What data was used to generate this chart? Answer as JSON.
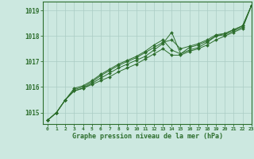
{
  "xlabel": "Graphe pression niveau de la mer (hPa)",
  "bg_color": "#cce8e0",
  "grid_color": "#aaccc4",
  "line_color": "#2d6e2d",
  "xlim": [
    -0.5,
    23
  ],
  "ylim": [
    1014.55,
    1019.35
  ],
  "yticks": [
    1015,
    1016,
    1017,
    1018,
    1019
  ],
  "xticks": [
    0,
    1,
    2,
    3,
    4,
    5,
    6,
    7,
    8,
    9,
    10,
    11,
    12,
    13,
    14,
    15,
    16,
    17,
    18,
    19,
    20,
    21,
    22,
    23
  ],
  "series": [
    [
      1014.7,
      1015.0,
      1015.5,
      1015.85,
      1015.95,
      1016.1,
      1016.25,
      1016.4,
      1016.6,
      1016.75,
      1016.9,
      1017.1,
      1017.3,
      1017.5,
      1017.25,
      1017.25,
      1017.4,
      1017.5,
      1017.65,
      1017.85,
      1018.0,
      1018.15,
      1018.3,
      1019.2
    ],
    [
      1014.7,
      1015.0,
      1015.5,
      1015.85,
      1015.95,
      1016.15,
      1016.35,
      1016.55,
      1016.75,
      1016.9,
      1017.05,
      1017.2,
      1017.45,
      1017.7,
      1018.15,
      1017.3,
      1017.55,
      1017.65,
      1017.8,
      1018.0,
      1018.05,
      1018.2,
      1018.35,
      1019.2
    ],
    [
      1014.7,
      1015.0,
      1015.5,
      1015.9,
      1016.0,
      1016.2,
      1016.45,
      1016.65,
      1016.85,
      1017.0,
      1017.15,
      1017.35,
      1017.55,
      1017.75,
      1017.85,
      1017.5,
      1017.6,
      1017.7,
      1017.85,
      1018.05,
      1018.1,
      1018.25,
      1018.4,
      1019.2
    ],
    [
      1014.7,
      1015.0,
      1015.5,
      1015.95,
      1016.05,
      1016.25,
      1016.5,
      1016.7,
      1016.9,
      1017.05,
      1017.2,
      1017.4,
      1017.65,
      1017.85,
      1017.45,
      1017.3,
      1017.45,
      1017.55,
      1017.75,
      1018.0,
      1018.1,
      1018.25,
      1018.4,
      1019.2
    ]
  ]
}
